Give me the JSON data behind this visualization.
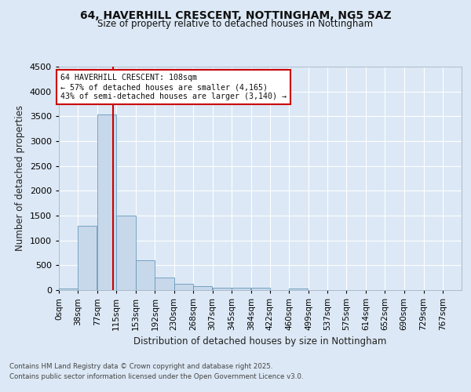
{
  "title1": "64, HAVERHILL CRESCENT, NOTTINGHAM, NG5 5AZ",
  "title2": "Size of property relative to detached houses in Nottingham",
  "xlabel": "Distribution of detached houses by size in Nottingham",
  "ylabel": "Number of detached properties",
  "bin_labels": [
    "0sqm",
    "38sqm",
    "77sqm",
    "115sqm",
    "153sqm",
    "192sqm",
    "230sqm",
    "268sqm",
    "307sqm",
    "345sqm",
    "384sqm",
    "422sqm",
    "460sqm",
    "499sqm",
    "537sqm",
    "575sqm",
    "614sqm",
    "652sqm",
    "690sqm",
    "729sqm",
    "767sqm"
  ],
  "bin_starts": [
    0,
    38,
    77,
    115,
    153,
    192,
    230,
    268,
    307,
    345,
    384,
    422,
    460,
    499,
    537,
    575,
    614,
    652,
    690,
    729,
    767
  ],
  "bar_heights": [
    30,
    1290,
    3540,
    1500,
    600,
    255,
    120,
    75,
    50,
    50,
    50,
    0,
    35,
    0,
    0,
    0,
    0,
    0,
    0,
    0,
    0
  ],
  "bar_color": "#c8d8eb",
  "bar_edge_color": "#6699bb",
  "vline_x": 108,
  "vline_color": "#cc0000",
  "annotation_text": "64 HAVERHILL CRESCENT: 108sqm\n← 57% of detached houses are smaller (4,165)\n43% of semi-detached houses are larger (3,140) →",
  "annotation_box_color": "#ffffff",
  "annotation_border_color": "#cc0000",
  "ylim": [
    0,
    4500
  ],
  "yticks": [
    0,
    500,
    1000,
    1500,
    2000,
    2500,
    3000,
    3500,
    4000,
    4500
  ],
  "bg_color": "#dce8f5",
  "plot_bg_color": "#dce8f5",
  "grid_color": "#ffffff",
  "footer1": "Contains HM Land Registry data © Crown copyright and database right 2025.",
  "footer2": "Contains public sector information licensed under the Open Government Licence v3.0.",
  "bin_width": 38,
  "xlim_max": 805
}
